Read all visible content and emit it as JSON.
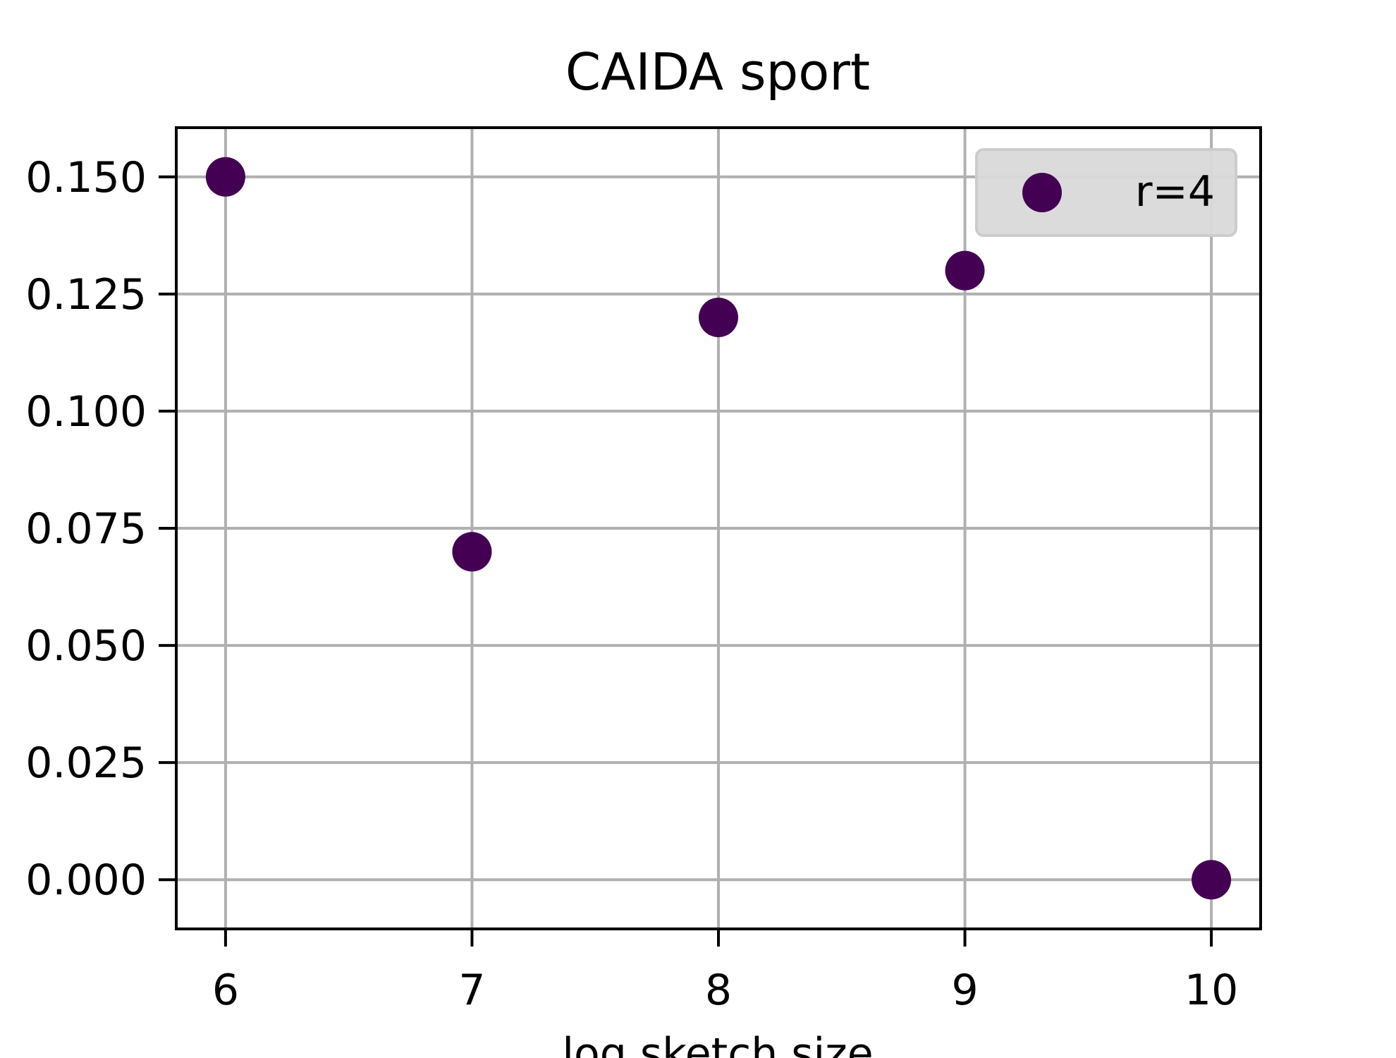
{
  "chart_data": {
    "type": "scatter",
    "title": "CAIDA sport",
    "xlabel": "log sketch size",
    "ylabel": "",
    "x": [
      6,
      7,
      8,
      9,
      10
    ],
    "series": [
      {
        "name": "r=4",
        "values": [
          0.15,
          0.07,
          0.12,
          0.13,
          0.0
        ],
        "color": "#440154"
      }
    ],
    "xlim": [
      5.8,
      10.2
    ],
    "ylim": [
      -0.0105,
      0.1605
    ],
    "x_ticks": [
      6,
      7,
      8,
      9,
      10
    ],
    "x_tick_labels": [
      "6",
      "7",
      "8",
      "9",
      "10"
    ],
    "y_ticks": [
      0.0,
      0.025,
      0.05,
      0.075,
      0.1,
      0.125,
      0.15
    ],
    "y_tick_labels": [
      "0.000",
      "0.025",
      "0.050",
      "0.075",
      "0.100",
      "0.125",
      "0.150"
    ],
    "grid": true,
    "legend_position": "top-right",
    "grid_color": "#b0b0b0",
    "legend_bg": "#d9d9d9"
  }
}
